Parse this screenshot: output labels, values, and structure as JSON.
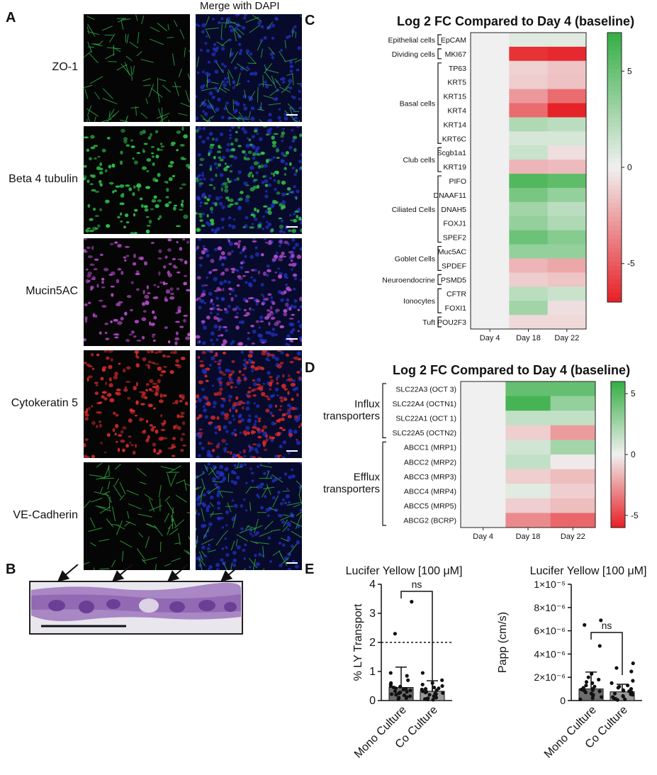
{
  "panels": {
    "A": "A",
    "B": "B",
    "C": "C",
    "D": "D",
    "E": "E"
  },
  "panelA": {
    "merge_header": "Merge with DAPI",
    "rows": [
      {
        "label": "ZO-1",
        "color": "#2ea84a"
      },
      {
        "label": "Beta 4 tubulin",
        "color": "#2fbf4a"
      },
      {
        "label": "Mucin5AC",
        "color": "#b44ac8"
      },
      {
        "label": "Cytokeratin 5",
        "color": "#d42a2a"
      },
      {
        "label": "VE-Cadherin",
        "color": "#2fae3f"
      }
    ],
    "dapi_color": "#2233cc"
  },
  "panelC": {
    "title": "Log 2  FC Compared to Day 4 (baseline)",
    "columns": [
      "Day 4",
      "Day 18",
      "Day 22"
    ],
    "genes": [
      "EpCAM",
      "MKI67",
      "TP63",
      "KRT5",
      "KRT15",
      "KRT4",
      "KRT14",
      "KRT6C",
      "Scgb1a1",
      "KRT19",
      "PIFO",
      "DNAAF11",
      "DNAH5",
      "FOXJ1",
      "SPEF2",
      "Muc5AC",
      "SPDEF",
      "PSMD5",
      "CFTR",
      "FOXI1",
      "POU2F3"
    ],
    "groups": [
      {
        "label": "Epithelial cells",
        "start": 0,
        "end": 0
      },
      {
        "label": "Dividing cells",
        "start": 1,
        "end": 1
      },
      {
        "label": "Basal cells",
        "start": 2,
        "end": 7
      },
      {
        "label": "Club cells",
        "start": 8,
        "end": 9
      },
      {
        "label": "Ciliated Cells",
        "start": 10,
        "end": 14
      },
      {
        "label": "Goblet Cells",
        "start": 15,
        "end": 16
      },
      {
        "label": "Neuroendocrine",
        "start": 17,
        "end": 17
      },
      {
        "label": "Ionocytes",
        "start": 18,
        "end": 19
      },
      {
        "label": "Tuft",
        "start": 20,
        "end": 20
      }
    ],
    "values": [
      [
        0,
        0.6,
        0.6
      ],
      [
        0,
        -6.5,
        -6.8
      ],
      [
        0,
        -1.0,
        -1.5
      ],
      [
        0,
        -1.2,
        -1.6
      ],
      [
        0,
        -3.0,
        -4.5
      ],
      [
        0,
        -4.5,
        -7.0
      ],
      [
        0,
        2.5,
        2.0
      ],
      [
        0,
        1.0,
        1.0
      ],
      [
        0,
        1.5,
        -0.6
      ],
      [
        0,
        -2.0,
        -1.8
      ],
      [
        0,
        6.0,
        5.5
      ],
      [
        0,
        4.5,
        3.5
      ],
      [
        0,
        3.0,
        2.0
      ],
      [
        0,
        3.5,
        2.5
      ],
      [
        0,
        5.0,
        4.0
      ],
      [
        0,
        3.5,
        3.5
      ],
      [
        0,
        -2.0,
        -2.5
      ],
      [
        0,
        -1.2,
        -1.5
      ],
      [
        0,
        2.0,
        1.5
      ],
      [
        0,
        3.0,
        -0.6
      ],
      [
        0,
        -0.8,
        -0.8
      ]
    ],
    "scale_ticks": [
      "5",
      "0",
      "-5"
    ],
    "range": [
      -7,
      7
    ]
  },
  "panelD": {
    "title": "Log 2  FC Compared to Day 4 (baseline)",
    "columns": [
      "Day 4",
      "Day 18",
      "Day 22"
    ],
    "genes": [
      "SLC22A3 (OCT 3)",
      "SLC22A4 (OCTN1)",
      "SLC22A1 (OCT 1)",
      "SLC22A5 (OCTN2)",
      "ABCC1 (MRP1)",
      "ABCC2 (MRP2)",
      "ABCC3 (MRP3)",
      "ABCC4 (MRP4)",
      "ABCC5 (MRP5)",
      "ABCG2 (BCRP)"
    ],
    "groups": [
      {
        "label": "Influx\ntransporters",
        "start": 0,
        "end": 3
      },
      {
        "label": "Efflux\ntransporters",
        "start": 4,
        "end": 9
      }
    ],
    "values": [
      [
        0,
        4.5,
        4.5
      ],
      [
        0,
        5.5,
        3.0
      ],
      [
        0,
        1.5,
        1.5
      ],
      [
        0,
        -1.0,
        -2.5
      ],
      [
        0,
        1.0,
        2.5
      ],
      [
        0,
        1.5,
        -0.2
      ],
      [
        0,
        -1.0,
        -1.5
      ],
      [
        0,
        0.5,
        -1.0
      ],
      [
        0,
        -1.0,
        -1.5
      ],
      [
        0,
        -3.0,
        -4.0
      ]
    ],
    "scale_ticks": [
      "5",
      "0",
      "-5"
    ],
    "range": [
      -6,
      6
    ]
  },
  "panelE": {
    "left": {
      "title": "Lucifer Yellow [100 μM]",
      "ylabel": "% LY Transport",
      "yticks": [
        "0",
        "1",
        "2",
        "3",
        "4"
      ],
      "ymax": 4,
      "categories": [
        "Mono Culture",
        "Co Culture"
      ],
      "means": [
        0.45,
        0.32
      ],
      "sd_upper": [
        1.15,
        0.68
      ],
      "threshold": 2,
      "significance": "ns",
      "points": [
        [
          3.4,
          2.3,
          0.95,
          0.85,
          0.7,
          0.6,
          0.55,
          0.5,
          0.48,
          0.45,
          0.42,
          0.4,
          0.38,
          0.35,
          0.32,
          0.3,
          0.28,
          0.25,
          0.22,
          0.2,
          0.18,
          0.15,
          0.12,
          0.1,
          0.08,
          0.05
        ],
        [
          0.95,
          0.7,
          0.6,
          0.55,
          0.5,
          0.45,
          0.42,
          0.4,
          0.38,
          0.35,
          0.32,
          0.3,
          0.28,
          0.26,
          0.24,
          0.22,
          0.2,
          0.18,
          0.15,
          0.12,
          0.1,
          0.08,
          0.06,
          0.05,
          0.04,
          0.03
        ]
      ]
    },
    "right": {
      "title": "Lucifer Yellow [100 μM]",
      "ylabel": "Papp (cm/s)",
      "yticks": [
        "0",
        "2×10⁻⁶",
        "4×10⁻⁶",
        "6×10⁻⁶",
        "8×10⁻⁶",
        "1×10⁻⁵"
      ],
      "ymax": 10,
      "categories": [
        "Mono Culture",
        "Co Culture"
      ],
      "means": [
        1.0,
        0.75
      ],
      "sd_upper": [
        2.45,
        1.4
      ],
      "significance": "ns",
      "points": [
        [
          6.9,
          6.5,
          4.7,
          2.3,
          2.0,
          1.8,
          1.6,
          1.5,
          1.3,
          1.2,
          1.1,
          1.0,
          0.95,
          0.9,
          0.85,
          0.8,
          0.7,
          0.6,
          0.5,
          0.4,
          0.3,
          0.2,
          0.1
        ],
        [
          3.2,
          2.8,
          2.5,
          1.7,
          1.5,
          1.3,
          1.2,
          1.1,
          1.0,
          0.9,
          0.85,
          0.8,
          0.7,
          0.6,
          0.55,
          0.5,
          0.4,
          0.35,
          0.3,
          0.2,
          0.15,
          0.1,
          0.05
        ]
      ]
    }
  }
}
